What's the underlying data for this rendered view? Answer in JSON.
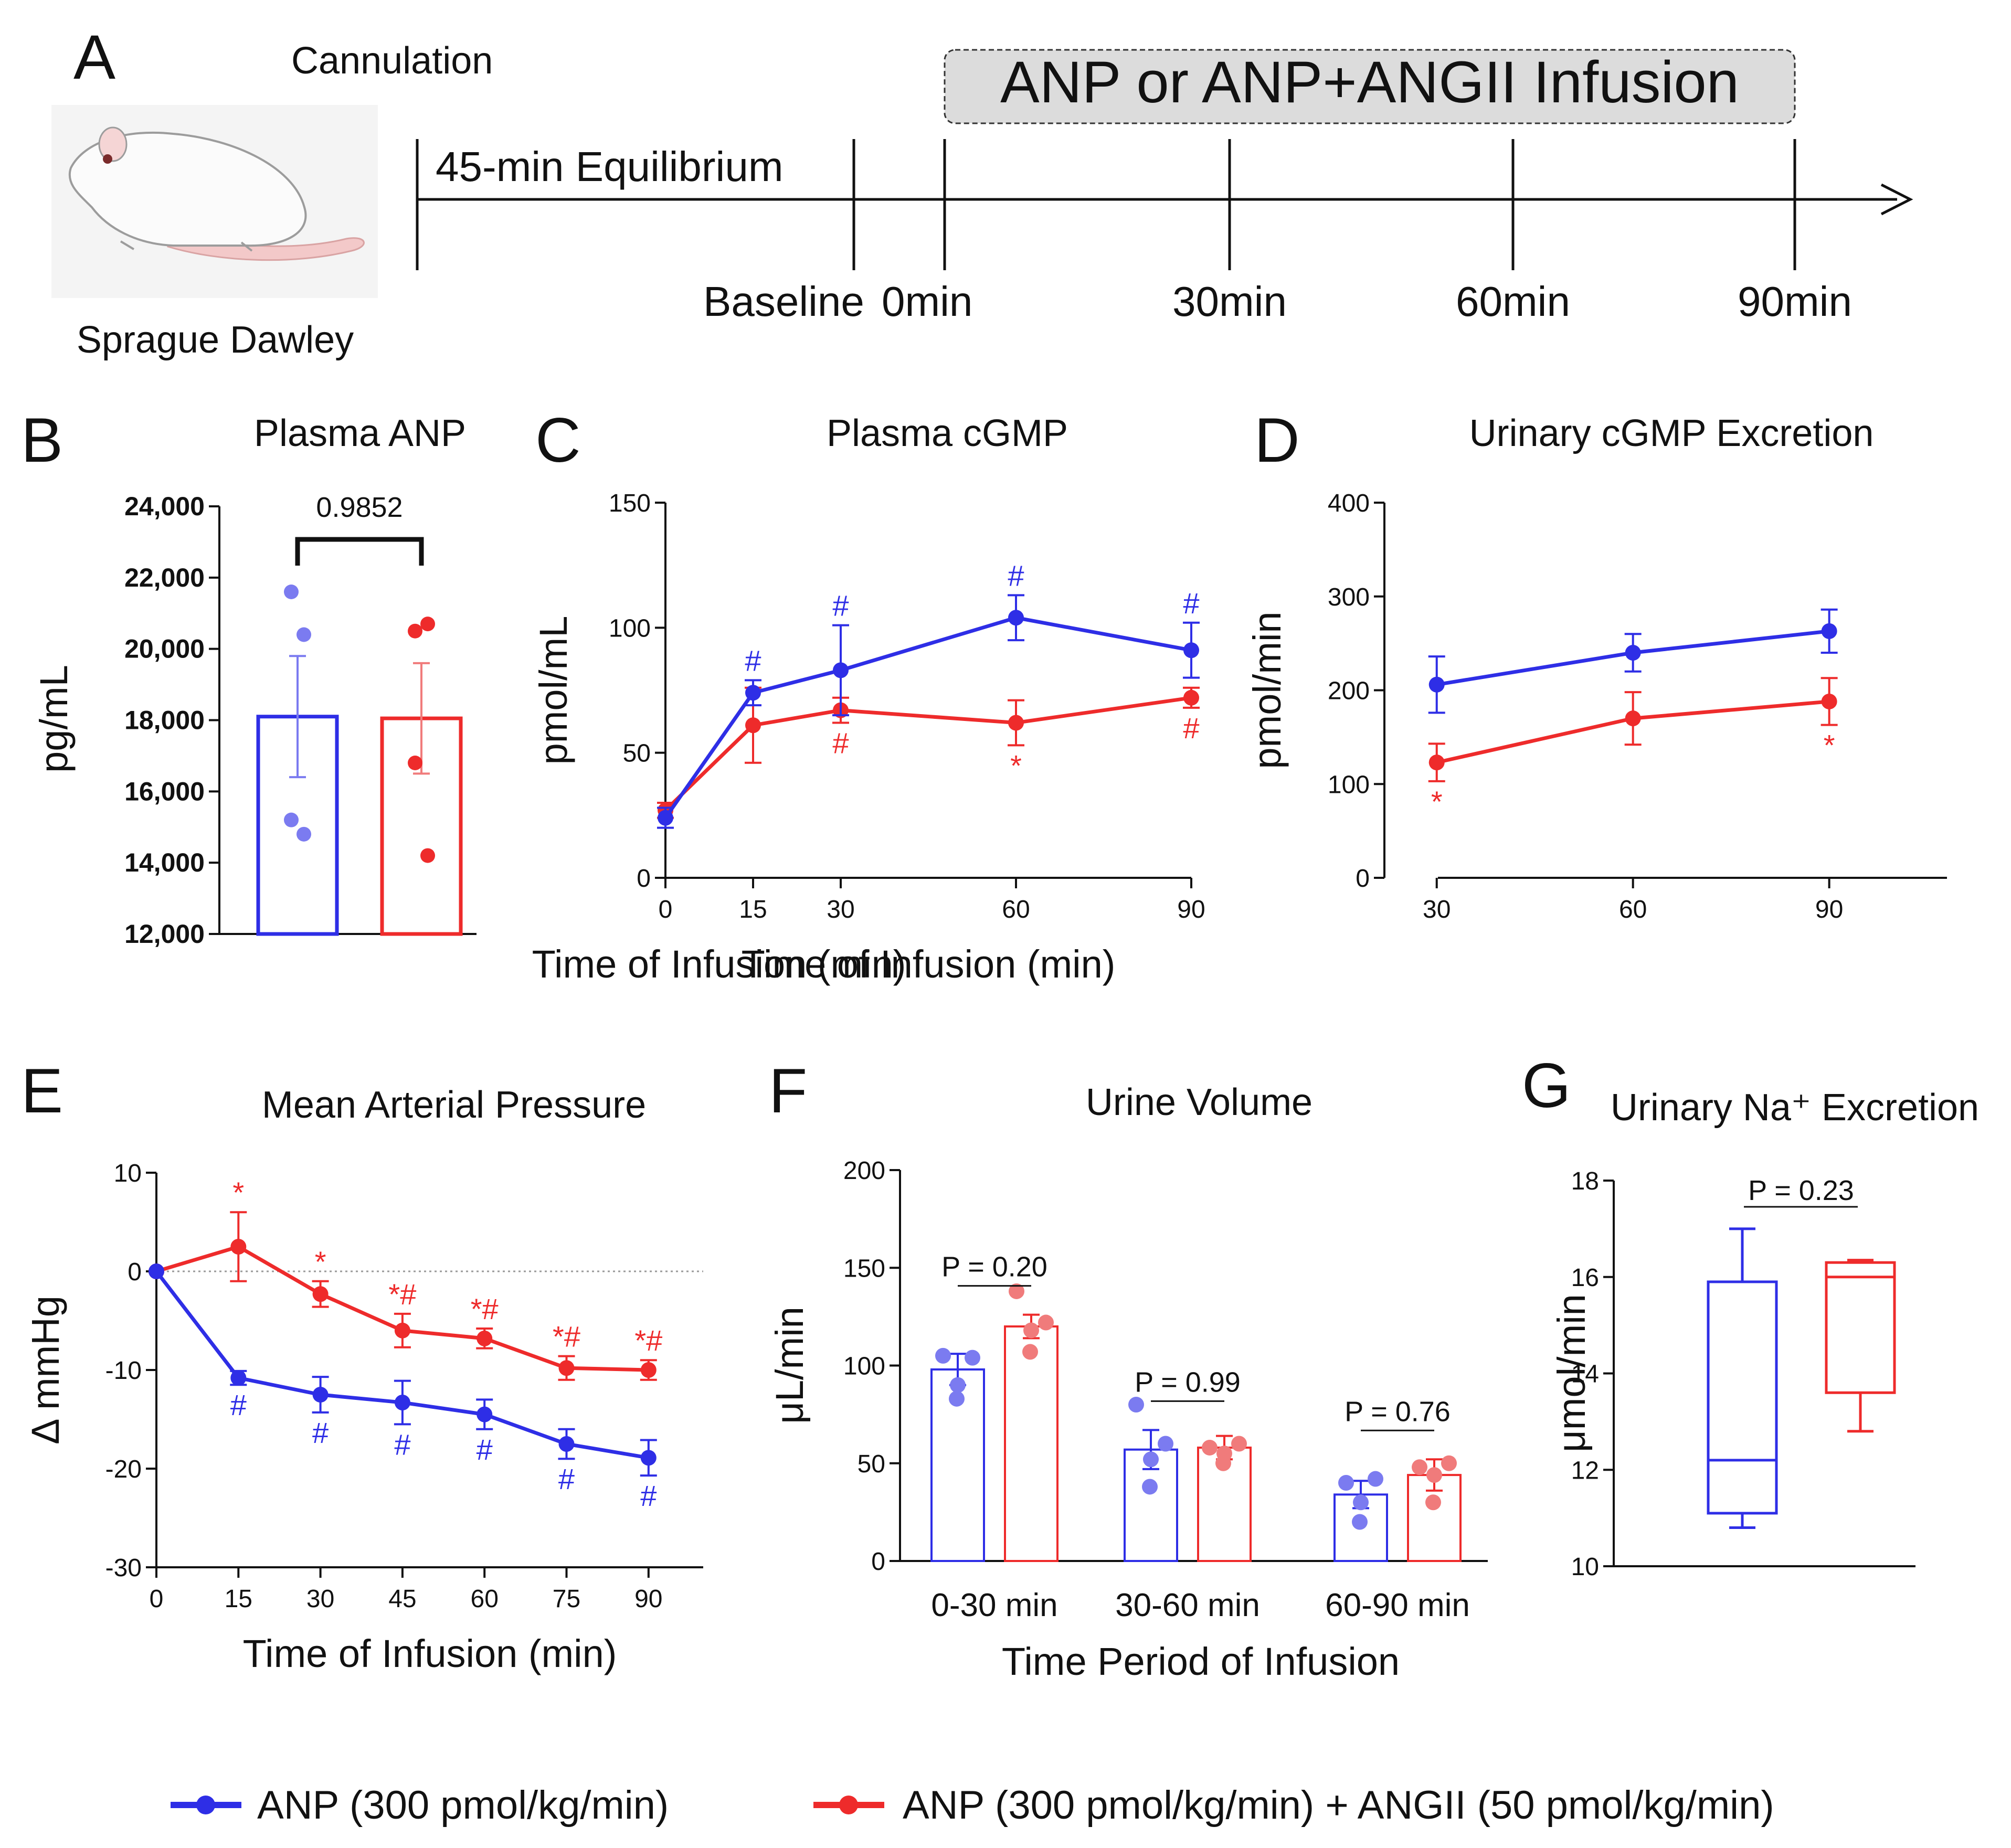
{
  "colors": {
    "anp": "#2e2ee6",
    "combo": "#ee2b2b",
    "box_fill": "#dcdcdc"
  },
  "panel_a": {
    "letter": "A",
    "cannulation": "Cannulation",
    "animal": "Sprague Dawley",
    "infusion_box": "ANP or ANP+ANGII Infusion",
    "equilibrium": "45-min Equilibrium",
    "timepoints": [
      "Baseline",
      "0min",
      "30min",
      "60min",
      "90min"
    ]
  },
  "chart_data": [
    {
      "id": "B",
      "letter": "B",
      "type": "bar",
      "title": "Plasma ANP",
      "ylabel": "pg/mL",
      "ylim": [
        12000,
        24000
      ],
      "yticks": [
        "12,000",
        "14,000",
        "16,000",
        "18,000",
        "20,000",
        "22,000",
        "24,000"
      ],
      "series": [
        {
          "name": "ANP",
          "mean": 18100,
          "sem": 1700,
          "points": [
            21600,
            20400,
            15200,
            14800
          ]
        },
        {
          "name": "ANP+ANGII",
          "mean": 18050,
          "sem": 1550,
          "points": [
            20500,
            20700,
            16800,
            14200
          ]
        }
      ],
      "annotation": "0.9852"
    },
    {
      "id": "C",
      "letter": "C",
      "type": "line",
      "title": "Plasma cGMP",
      "xlabel": "Time of Infusion (min)",
      "ylabel": "pmol/mL",
      "xlim": [
        0,
        90
      ],
      "ylim": [
        0,
        150
      ],
      "xticks": [
        "0",
        "15",
        "30",
        "60",
        "90"
      ],
      "yticks": [
        "0",
        "50",
        "100",
        "150"
      ],
      "x": [
        0,
        15,
        30,
        60,
        90
      ],
      "series": [
        {
          "name": "ANP",
          "values": [
            24,
            74,
            83,
            104,
            91
          ],
          "err": [
            4,
            5,
            18,
            9,
            11
          ],
          "marks": [
            "",
            "#",
            "#",
            "#",
            "#"
          ]
        },
        {
          "name": "ANP+ANGII",
          "values": [
            27,
            61,
            67,
            62,
            72
          ],
          "err": [
            3,
            15,
            5,
            9,
            4
          ],
          "marks": [
            "",
            "",
            "#",
            "*",
            "#"
          ]
        }
      ]
    },
    {
      "id": "D",
      "letter": "D",
      "type": "line",
      "title": "Urinary cGMP Excretion",
      "xlabel": "Time of Infusion (min)",
      "ylabel": "pmol/min",
      "xlim": [
        22,
        108
      ],
      "ylim": [
        0,
        400
      ],
      "xticks": [
        "30",
        "60",
        "90"
      ],
      "yticks": [
        "0",
        "100",
        "200",
        "300",
        "400"
      ],
      "x": [
        30,
        60,
        90
      ],
      "series": [
        {
          "name": "ANP",
          "values": [
            206,
            240,
            263
          ],
          "err": [
            30,
            20,
            23
          ],
          "marks": [
            "",
            "",
            ""
          ]
        },
        {
          "name": "ANP+ANGII",
          "values": [
            123,
            170,
            188
          ],
          "err": [
            20,
            28,
            25
          ],
          "marks": [
            "*",
            "",
            "*"
          ]
        }
      ]
    },
    {
      "id": "E",
      "letter": "E",
      "type": "line",
      "title": "Mean Arterial Pressure",
      "xlabel": "Time of Infusion (min)",
      "ylabel": "Δ mmHg",
      "xlim": [
        0,
        100
      ],
      "ylim": [
        -30,
        10
      ],
      "xticks": [
        "0",
        "15",
        "30",
        "45",
        "60",
        "75",
        "90"
      ],
      "yticks": [
        "-30",
        "-20",
        "-10",
        "0",
        "10"
      ],
      "x": [
        0,
        15,
        30,
        45,
        60,
        75,
        90
      ],
      "series": [
        {
          "name": "ANP",
          "values": [
            0,
            -10.8,
            -12.5,
            -13.3,
            -14.5,
            -17.5,
            -18.9
          ],
          "err": [
            0,
            0.7,
            1.8,
            2.2,
            1.5,
            1.5,
            1.8
          ],
          "marks": [
            "",
            "#",
            "#",
            "#",
            "#",
            "#",
            "#"
          ]
        },
        {
          "name": "ANP+ANGII",
          "values": [
            0,
            2.5,
            -2.3,
            -6,
            -6.8,
            -9.8,
            -10
          ],
          "err": [
            0,
            3.5,
            1.3,
            1.7,
            1,
            1.2,
            1
          ],
          "marks": [
            "",
            "*",
            "*",
            "*#",
            "*#",
            "*#",
            "*#"
          ]
        }
      ]
    },
    {
      "id": "F",
      "letter": "F",
      "type": "bar",
      "title": "Urine Volume",
      "xlabel": "Time Period of Infusion",
      "ylabel": "μL/min",
      "ylim": [
        0,
        200
      ],
      "yticks": [
        "0",
        "50",
        "100",
        "150",
        "200"
      ],
      "categories": [
        "0-30 min",
        "30-60 min",
        "60-90 min"
      ],
      "series": [
        {
          "name": "ANP",
          "values": [
            98,
            57,
            34
          ],
          "err": [
            8,
            10,
            7
          ],
          "points": [
            [
              105,
              104,
              90,
              83
            ],
            [
              80,
              60,
              52,
              38
            ],
            [
              40,
              42,
              30,
              20
            ]
          ]
        },
        {
          "name": "ANP+ANGII",
          "values": [
            120,
            58,
            44
          ],
          "err": [
            6,
            6,
            8
          ],
          "points": [
            [
              138,
              122,
              118,
              107
            ],
            [
              58,
              60,
              55,
              50
            ],
            [
              48,
              50,
              44,
              30
            ]
          ]
        }
      ],
      "p_values": [
        "P = 0.20",
        "P = 0.99",
        "P = 0.76"
      ]
    },
    {
      "id": "G",
      "letter": "G",
      "type": "box",
      "title": "Urinary Na⁺ Excretion",
      "ylabel": "μmol/min",
      "ylim": [
        10,
        18
      ],
      "yticks": [
        "10",
        "12",
        "14",
        "16",
        "18"
      ],
      "series": [
        {
          "name": "ANP",
          "min": 10.8,
          "q1": 11.1,
          "median": 12.2,
          "q3": 15.9,
          "max": 17.0
        },
        {
          "name": "ANP+ANGII",
          "min": 12.8,
          "q1": 13.6,
          "median": 16.0,
          "q3": 16.3,
          "max": 16.35
        }
      ],
      "annotation": "P = 0.23"
    }
  ],
  "legend": [
    "ANP (300 pmol/kg/min)",
    "ANP (300 pmol/kg/min) + ANGII (50 pmol/kg/min)"
  ]
}
